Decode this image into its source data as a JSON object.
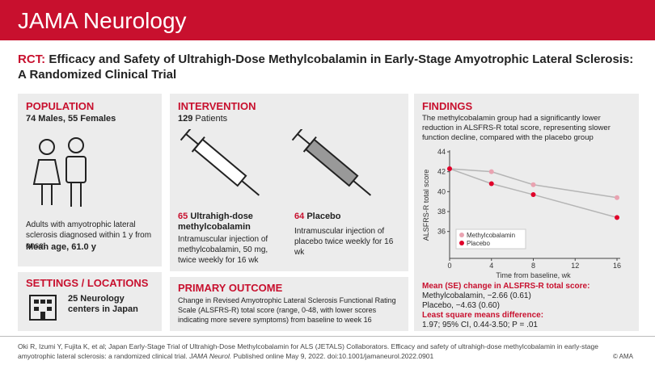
{
  "header": {
    "journal": "JAMA Neurology"
  },
  "title": {
    "label": "RCT:",
    "text": "Efficacy and Safety of Ultrahigh-Dose Methylcobalamin in Early-Stage Amyotrophic Lateral Sclerosis: A Randomized Clinical Trial"
  },
  "population": {
    "heading": "POPULATION",
    "sexes": "74 Males, 55 Females",
    "description": "Adults with amyotrophic lateral sclerosis diagnosed within 1 y from onset",
    "age": "Mean age, 61.0 y"
  },
  "settings": {
    "heading": "SETTINGS / LOCATIONS",
    "text": "25 Neurology centers in Japan"
  },
  "intervention": {
    "heading": "INTERVENTION",
    "count": "129",
    "count_label": "Patients",
    "arms": [
      {
        "n": "65",
        "name": "Ultrahigh-dose methylcobalamin",
        "description": "Intramuscular injection of methylcobalamin, 50 mg, twice weekly for 16 wk"
      },
      {
        "n": "64",
        "name": "Placebo",
        "description": "Intramuscular injection of placebo twice weekly for 16 wk"
      }
    ]
  },
  "primary_outcome": {
    "heading": "PRIMARY OUTCOME",
    "text": "Change in Revised Amyotrophic Lateral Sclerosis Functional Rating Scale (ALSFRS-R) total score (range, 0-48, with lower scores indicating more severe symptoms) from baseline to week 16"
  },
  "findings": {
    "heading": "FINDINGS",
    "text": "The methylcobalamin group had a significantly lower reduction in ALSFRS-R total score, representing slower function decline, compared with the placebo group",
    "mean_heading": "Mean (SE) change in ALSFRS-R total score:",
    "mean_lines": [
      "Methylcobalamin, −2.66 (0.61)",
      "Placebo, −4.63 (0.60)"
    ],
    "lsm_heading": "Least square means difference:",
    "lsm_text": "1.97; 95% CI, 0.44-3.50; P = .01"
  },
  "chart_data": {
    "type": "line",
    "x_label": "Time from baseline, wk",
    "y_label": "ALSFRS-R total score",
    "x": [
      0,
      4,
      8,
      16
    ],
    "xlim": [
      0,
      16
    ],
    "xticks": [
      0,
      4,
      8,
      12,
      16
    ],
    "ylim": [
      33.3,
      44
    ],
    "yticks": [
      36,
      38,
      40,
      42,
      44
    ],
    "line_color": "#b5b5b5",
    "legend": "lower-left",
    "series": [
      {
        "name": "Methylcobalamin",
        "color": "#e9a3b1",
        "values": [
          42.3,
          42.0,
          40.7,
          39.4
        ]
      },
      {
        "name": "Placebo",
        "color": "#e0002a",
        "values": [
          42.3,
          40.8,
          39.7,
          37.4
        ]
      }
    ]
  },
  "citation": {
    "authors": "Oki R, Izumi Y, Fujita K, et al; Japan Early-Stage Trial of Ultrahigh-Dose Methylcobalamin for ALS (JETALS) Collaborators. Efficacy and safety of ultrahigh-dose methylcobalamin in early-stage amyotrophic lateral sclerosis: a randomized clinical trial.",
    "journal": "JAMA Neurol.",
    "details": "Published online May 9, 2022. doi:10.1001/jamaneurol.2022.0901",
    "copyright": "© AMA"
  }
}
